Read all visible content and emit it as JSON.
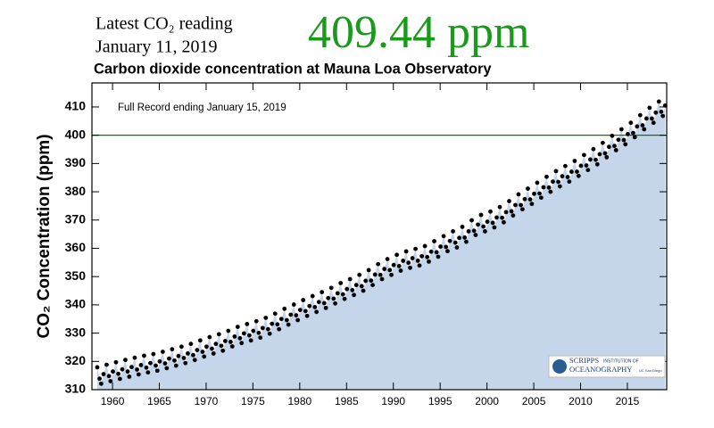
{
  "header": {
    "reading_label": "Latest CO₂ reading",
    "reading_date": "January 11, 2019",
    "reading_value": "409.44 ppm"
  },
  "chart_data": {
    "type": "scatter",
    "title": "Carbon dioxide concentration at Mauna Loa Observatory",
    "annotation": "Full Record ending January 15, 2019",
    "y_label": "CO₂ Concentration (ppm)",
    "color": "#000000",
    "area_color": "#c5d6ea",
    "reference_line": {
      "value": 400,
      "color": "#008000"
    },
    "xlim": [
      1957.8,
      2019.2
    ],
    "ylim": [
      310,
      418.5
    ],
    "xticks": [
      1960,
      1965,
      1970,
      1975,
      1980,
      1985,
      1990,
      1995,
      2000,
      2005,
      2010,
      2015
    ],
    "yticks": [
      310,
      320,
      330,
      340,
      350,
      360,
      370,
      380,
      390,
      400,
      410
    ],
    "x": [
      1958.37,
      1958.62,
      1958.79,
      1959.04,
      1959.37,
      1959.62,
      1959.79,
      1960.04,
      1960.37,
      1960.62,
      1960.79,
      1961.04,
      1961.37,
      1961.62,
      1961.79,
      1962.04,
      1962.37,
      1962.62,
      1962.79,
      1963.04,
      1963.37,
      1963.62,
      1963.79,
      1964.04,
      1964.37,
      1964.62,
      1964.79,
      1965.04,
      1965.37,
      1965.62,
      1965.79,
      1966.04,
      1966.37,
      1966.62,
      1966.79,
      1967.04,
      1967.37,
      1967.62,
      1967.79,
      1968.04,
      1968.37,
      1968.62,
      1968.79,
      1969.04,
      1969.37,
      1969.62,
      1969.79,
      1970.04,
      1970.37,
      1970.62,
      1970.79,
      1971.04,
      1971.37,
      1971.62,
      1971.79,
      1972.04,
      1972.37,
      1972.62,
      1972.79,
      1973.04,
      1973.37,
      1973.62,
      1973.79,
      1974.04,
      1974.37,
      1974.62,
      1974.79,
      1975.04,
      1975.37,
      1975.62,
      1975.79,
      1976.04,
      1976.37,
      1976.62,
      1976.79,
      1977.04,
      1977.37,
      1977.62,
      1977.79,
      1978.04,
      1978.37,
      1978.62,
      1978.79,
      1979.04,
      1979.37,
      1979.62,
      1979.79,
      1980.04,
      1980.37,
      1980.62,
      1980.79,
      1981.04,
      1981.37,
      1981.62,
      1981.79,
      1982.04,
      1982.37,
      1982.62,
      1982.79,
      1983.04,
      1983.37,
      1983.62,
      1983.79,
      1984.04,
      1984.37,
      1984.62,
      1984.79,
      1985.04,
      1985.37,
      1985.62,
      1985.79,
      1986.04,
      1986.37,
      1986.62,
      1986.79,
      1987.04,
      1987.37,
      1987.62,
      1987.79,
      1988.04,
      1988.37,
      1988.62,
      1988.79,
      1989.04,
      1989.37,
      1989.62,
      1989.79,
      1990.04,
      1990.37,
      1990.62,
      1990.79,
      1991.04,
      1991.37,
      1991.62,
      1991.79,
      1992.04,
      1992.37,
      1992.62,
      1992.79,
      1993.04,
      1993.37,
      1993.62,
      1993.79,
      1994.04,
      1994.37,
      1994.62,
      1994.79,
      1995.04,
      1995.37,
      1995.62,
      1995.79,
      1996.04,
      1996.37,
      1996.62,
      1996.79,
      1997.04,
      1997.37,
      1997.62,
      1997.79,
      1998.04,
      1998.37,
      1998.62,
      1998.79,
      1999.04,
      1999.37,
      1999.62,
      1999.79,
      2000.04,
      2000.37,
      2000.62,
      2000.79,
      2001.04,
      2001.37,
      2001.62,
      2001.79,
      2002.04,
      2002.37,
      2002.62,
      2002.79,
      2003.04,
      2003.37,
      2003.62,
      2003.79,
      2004.04,
      2004.37,
      2004.62,
      2004.79,
      2005.04,
      2005.37,
      2005.62,
      2005.79,
      2006.04,
      2006.37,
      2006.62,
      2006.79,
      2007.04,
      2007.37,
      2007.62,
      2007.79,
      2008.04,
      2008.37,
      2008.62,
      2008.79,
      2009.04,
      2009.37,
      2009.62,
      2009.79,
      2010.04,
      2010.37,
      2010.62,
      2010.79,
      2011.04,
      2011.37,
      2011.62,
      2011.79,
      2012.04,
      2012.37,
      2012.62,
      2012.79,
      2013.04,
      2013.37,
      2013.62,
      2013.79,
      2014.04,
      2014.37,
      2014.62,
      2014.79,
      2015.04,
      2015.37,
      2015.62,
      2015.79,
      2016.04,
      2016.37,
      2016.62,
      2016.79,
      2017.04,
      2017.37,
      2017.62,
      2017.79,
      2018.04,
      2018.37,
      2018.62,
      2018.79,
      2019.04
    ],
    "values": [
      317.9,
      313.9,
      312.1,
      315.5,
      318.8,
      314.8,
      313.0,
      316.4,
      319.7,
      315.6,
      313.8,
      317.2,
      320.5,
      316.4,
      314.6,
      318.0,
      321.3,
      317.1,
      315.4,
      318.7,
      322.0,
      317.8,
      316.1,
      319.4,
      322.6,
      318.5,
      316.7,
      320.0,
      323.4,
      319.3,
      317.6,
      321.0,
      324.3,
      320.3,
      318.5,
      321.9,
      325.2,
      321.2,
      319.4,
      322.8,
      326.2,
      322.2,
      320.5,
      324.0,
      327.4,
      323.4,
      321.7,
      325.2,
      328.6,
      324.5,
      322.8,
      326.2,
      329.6,
      325.5,
      323.8,
      327.2,
      330.8,
      326.9,
      325.3,
      328.8,
      332.2,
      328.2,
      326.5,
      329.9,
      333.2,
      329.2,
      327.4,
      330.8,
      334.2,
      330.1,
      328.4,
      331.8,
      335.4,
      331.4,
      329.8,
      333.3,
      336.9,
      333.1,
      331.4,
      335.0,
      338.6,
      334.6,
      333.0,
      336.5,
      340.1,
      336.3,
      334.6,
      338.2,
      341.7,
      337.8,
      336.1,
      339.6,
      343.1,
      339.2,
      337.5,
      341.0,
      344.5,
      340.6,
      338.9,
      342.4,
      346.0,
      342.2,
      340.5,
      344.1,
      347.7,
      343.7,
      342.1,
      345.6,
      349.1,
      345.2,
      343.5,
      347.0,
      350.6,
      346.6,
      345.0,
      348.5,
      352.3,
      348.6,
      347.0,
      350.7,
      354.4,
      350.6,
      349.1,
      352.7,
      356.2,
      352.3,
      350.6,
      354.1,
      357.7,
      353.7,
      352.1,
      355.6,
      358.9,
      354.9,
      353.1,
      356.5,
      359.8,
      355.6,
      353.9,
      357.2,
      360.8,
      356.9,
      355.3,
      358.8,
      362.5,
      358.6,
      357.0,
      360.6,
      364.3,
      360.5,
      359.0,
      362.6,
      366.0,
      362.0,
      360.3,
      363.7,
      367.6,
      363.8,
      362.3,
      366.0,
      369.9,
      366.2,
      364.7,
      368.4,
      371.8,
      367.7,
      366.0,
      369.4,
      373.0,
      369.0,
      367.4,
      370.9,
      374.6,
      370.8,
      369.2,
      372.8,
      376.7,
      373.1,
      371.6,
      375.3,
      379.1,
      375.3,
      373.8,
      377.4,
      381.1,
      377.3,
      375.7,
      379.3,
      383.2,
      379.4,
      377.9,
      381.6,
      385.3,
      381.5,
      380.0,
      383.6,
      387.3,
      383.5,
      381.9,
      385.5,
      389.1,
      385.2,
      383.6,
      387.1,
      390.9,
      387.1,
      385.6,
      389.2,
      393.0,
      389.3,
      387.7,
      391.4,
      395.1,
      391.3,
      389.7,
      393.3,
      397.3,
      393.6,
      392.2,
      395.9,
      399.8,
      396.2,
      394.7,
      398.4,
      402.1,
      398.3,
      396.8,
      400.4,
      404.4,
      400.8,
      399.3,
      403.1,
      407.1,
      403.5,
      402.1,
      405.9,
      409.7,
      405.9,
      404.4,
      408.0,
      411.9,
      408.3,
      406.8,
      410.5
    ]
  },
  "logo": {
    "name": "SCRIPPS",
    "subname": "INSTITUTION OF",
    "field": "OCEANOGRAPHY",
    "university": "UC San Diego"
  }
}
